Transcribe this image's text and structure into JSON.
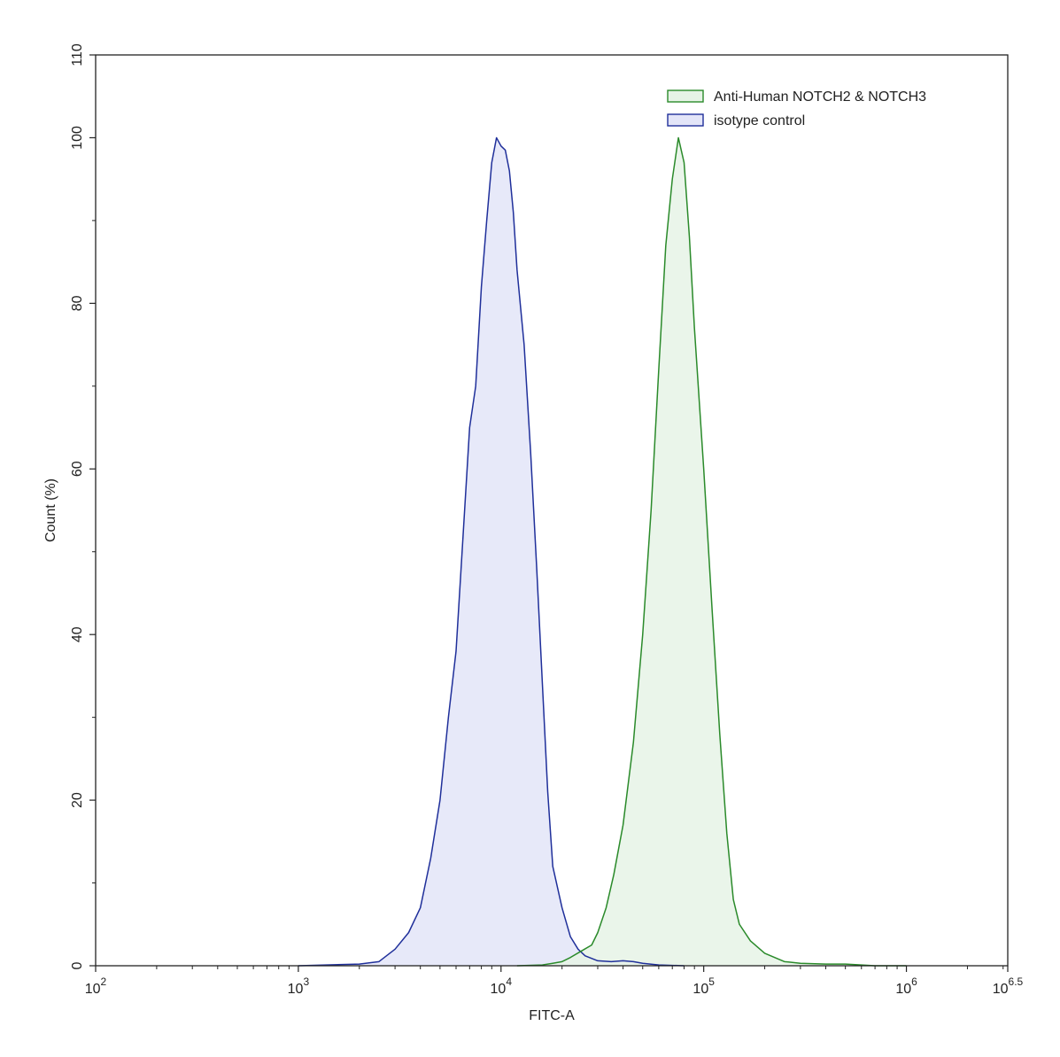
{
  "chart_data": {
    "type": "area",
    "xlabel": "FITC-A",
    "ylabel": "Count  (%)",
    "x_scale": "log10",
    "xlim": [
      100,
      3162277.66
    ],
    "ylim": [
      0,
      110
    ],
    "x_ticks": [
      {
        "value": 100,
        "base": "10",
        "exp": "2"
      },
      {
        "value": 1000,
        "base": "10",
        "exp": "3"
      },
      {
        "value": 10000,
        "base": "10",
        "exp": "4"
      },
      {
        "value": 100000,
        "base": "10",
        "exp": "5"
      },
      {
        "value": 1000000,
        "base": "10",
        "exp": "6"
      },
      {
        "value": 3162277.66,
        "base": "10",
        "exp": "6.5"
      }
    ],
    "y_ticks": [
      0,
      20,
      40,
      60,
      80,
      100,
      110
    ],
    "grid": false,
    "legend_position": "top-right",
    "series": [
      {
        "name": "isotype control",
        "stroke": "#1f2f9a",
        "fill": "#e3e5f8",
        "points": [
          [
            1000,
            0
          ],
          [
            2000,
            0.2
          ],
          [
            2500,
            0.5
          ],
          [
            3000,
            2
          ],
          [
            3500,
            4
          ],
          [
            4000,
            7
          ],
          [
            4500,
            13
          ],
          [
            5000,
            20
          ],
          [
            5500,
            30
          ],
          [
            6000,
            38
          ],
          [
            6500,
            52
          ],
          [
            7000,
            65
          ],
          [
            7500,
            70
          ],
          [
            8000,
            82
          ],
          [
            8500,
            90
          ],
          [
            9000,
            97
          ],
          [
            9500,
            100
          ],
          [
            10000,
            99
          ],
          [
            10500,
            98.5
          ],
          [
            11000,
            96
          ],
          [
            11500,
            91
          ],
          [
            12000,
            84
          ],
          [
            13000,
            75
          ],
          [
            14000,
            62
          ],
          [
            15000,
            48
          ],
          [
            16000,
            34
          ],
          [
            17000,
            21
          ],
          [
            18000,
            12
          ],
          [
            20000,
            7
          ],
          [
            22000,
            3.5
          ],
          [
            24000,
            2
          ],
          [
            26000,
            1.2
          ],
          [
            30000,
            0.6
          ],
          [
            35000,
            0.5
          ],
          [
            40000,
            0.6
          ],
          [
            45000,
            0.5
          ],
          [
            50000,
            0.3
          ],
          [
            60000,
            0.1
          ],
          [
            80000,
            0
          ]
        ]
      },
      {
        "name": "Anti-Human NOTCH2 & NOTCH3",
        "stroke": "#2a8a2a",
        "fill": "#e6f3e6",
        "points": [
          [
            12000,
            0
          ],
          [
            16000,
            0.1
          ],
          [
            18000,
            0.3
          ],
          [
            20000,
            0.5
          ],
          [
            22000,
            1
          ],
          [
            25000,
            1.8
          ],
          [
            28000,
            2.5
          ],
          [
            30000,
            4
          ],
          [
            33000,
            7
          ],
          [
            36000,
            11
          ],
          [
            40000,
            17
          ],
          [
            45000,
            27
          ],
          [
            50000,
            40
          ],
          [
            55000,
            55
          ],
          [
            60000,
            72
          ],
          [
            65000,
            87
          ],
          [
            70000,
            95
          ],
          [
            75000,
            100
          ],
          [
            80000,
            97
          ],
          [
            85000,
            88
          ],
          [
            90000,
            77
          ],
          [
            100000,
            60
          ],
          [
            110000,
            43
          ],
          [
            120000,
            28
          ],
          [
            130000,
            16
          ],
          [
            140000,
            8
          ],
          [
            150000,
            5
          ],
          [
            170000,
            3
          ],
          [
            200000,
            1.5
          ],
          [
            250000,
            0.5
          ],
          [
            300000,
            0.3
          ],
          [
            400000,
            0.2
          ],
          [
            500000,
            0.2
          ],
          [
            700000,
            0
          ],
          [
            1000000,
            0
          ]
        ]
      }
    ]
  }
}
